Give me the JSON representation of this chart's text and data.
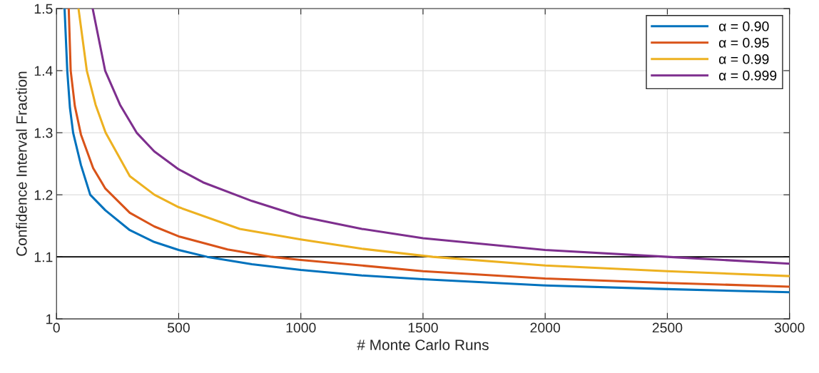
{
  "chart_data": {
    "type": "line",
    "xlabel": "# Monte Carlo Runs",
    "ylabel": "Confidence Interval Fraction",
    "series": [
      {
        "name": "α = 0.90",
        "color": "#0072bd",
        "x": [
          33,
          44,
          55,
          68,
          100,
          138,
          200,
          300,
          400,
          500,
          617,
          800,
          1000,
          1250,
          1500,
          2000,
          2500,
          3000
        ],
        "values": [
          1.5,
          1.4,
          1.34,
          1.3,
          1.248,
          1.2,
          1.175,
          1.143,
          1.124,
          1.111,
          1.1,
          1.088,
          1.079,
          1.07,
          1.064,
          1.054,
          1.048,
          1.043
        ]
      },
      {
        "name": "α = 0.95",
        "color": "#d95319",
        "x": [
          50,
          58,
          75,
          100,
          150,
          200,
          300,
          400,
          500,
          700,
          880,
          1000,
          1500,
          2000,
          2500,
          3000
        ],
        "values": [
          1.5,
          1.4,
          1.343,
          1.297,
          1.243,
          1.21,
          1.171,
          1.149,
          1.133,
          1.112,
          1.1,
          1.095,
          1.077,
          1.065,
          1.058,
          1.052
        ]
      },
      {
        "name": "α = 0.99",
        "color": "#edb120",
        "x": [
          90,
          124,
          160,
          201,
          300,
          401,
          500,
          750,
          1000,
          1250,
          1540,
          2000,
          2500,
          3000
        ],
        "values": [
          1.5,
          1.4,
          1.345,
          1.3,
          1.23,
          1.2,
          1.18,
          1.145,
          1.128,
          1.113,
          1.1,
          1.086,
          1.077,
          1.069
        ]
      },
      {
        "name": "α = 0.999",
        "color": "#7e2f8e",
        "x": [
          148,
          199,
          260,
          328,
          400,
          500,
          600,
          800,
          1000,
          1250,
          1500,
          2000,
          2500,
          3000
        ],
        "values": [
          1.5,
          1.4,
          1.345,
          1.3,
          1.27,
          1.241,
          1.22,
          1.19,
          1.165,
          1.145,
          1.13,
          1.111,
          1.1,
          1.089
        ]
      }
    ],
    "xlim": [
      0,
      3000
    ],
    "xticks": [
      0,
      500,
      1000,
      1500,
      2000,
      2500,
      3000
    ],
    "ylim": [
      1,
      1.5
    ],
    "yticks": [
      1,
      1.1,
      1.2,
      1.3,
      1.4,
      1.5
    ],
    "ref_lines": [
      {
        "axis": "y",
        "value": 1.1,
        "color": "#000000",
        "line_style": "solid"
      }
    ],
    "grid": true,
    "legend": "top right",
    "line_style": "solid",
    "marker": "none"
  }
}
